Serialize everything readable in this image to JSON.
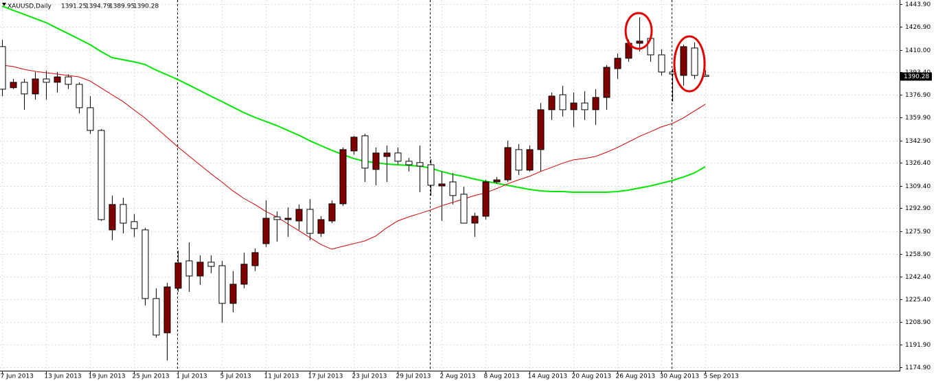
{
  "chart_data": {
    "type": "candlestick",
    "title": "XAUUSD,Daily",
    "categories": [
      "7 Jun 2013",
      null,
      null,
      null,
      "13 Jun 2013",
      null,
      null,
      null,
      "19 Jun 2013",
      null,
      null,
      null,
      "25 Jun 2013",
      null,
      null,
      null,
      "1 Jul 2013",
      null,
      null,
      null,
      "5 Jul 2013",
      null,
      null,
      null,
      "11 Jul 2013",
      null,
      null,
      null,
      "17 Jul 2013",
      null,
      null,
      null,
      "23 Jul 2013",
      null,
      null,
      null,
      "29 Jul 2013",
      null,
      null,
      null,
      "2 Aug 2013",
      null,
      null,
      null,
      "8 Aug 2013",
      null,
      null,
      null,
      "14 Aug 2013",
      null,
      null,
      null,
      "20 Aug 2013",
      null,
      null,
      null,
      "26 Aug 2013",
      null,
      null,
      null,
      "30 Aug 2013",
      null,
      null,
      null,
      "5 Sep 2013"
    ],
    "open": [
      1412.4,
      1382,
      1386,
      1377.4,
      1388.5,
      1386,
      1390,
      1384.5,
      1367.2,
      1350.4,
      1276.8,
      1295.6,
      1282.9,
      1276.8,
      1226,
      1200.6,
      1233.6,
      1253.9,
      1242.7,
      1252.9,
      1250.3,
      1222.4,
      1236.6,
      1250.3,
      1266.6,
      1286.4,
      1284.4,
      1283.4,
      1292,
      1274.2,
      1283.4,
      1296.1,
      1335.2,
      1346.4,
      1321.5,
      1331.1,
      1333.7,
      1327.6,
      1326.6,
      1325,
      1309.3,
      1312.3,
      1303.2,
      1281.8,
      1286.9,
      1312.3,
      1313.8,
      1336.2,
      1321,
      1336.2,
      1365.7,
      1376.8,
      1365.7,
      1370.7,
      1365.7,
      1374.8,
      1396.1,
      1403.8,
      1414.9,
      1418.5,
      1406.3,
      1393.6,
      1391.1,
      1411.4,
      1391.25
    ],
    "high": [
      1417.5,
      1388.5,
      1388.5,
      1393.6,
      1394.6,
      1393.6,
      1392,
      1386,
      1375.8,
      1351.4,
      1302.2,
      1300.6,
      1288.5,
      1278.3,
      1233.6,
      1237.6,
      1261.5,
      1267.6,
      1258,
      1258,
      1253.9,
      1246.3,
      1260,
      1263,
      1298.6,
      1290.5,
      1293.5,
      1295.6,
      1299.6,
      1286.9,
      1298.6,
      1337.7,
      1346.4,
      1347.9,
      1337.7,
      1339.2,
      1337.7,
      1330.1,
      1339.2,
      1329.1,
      1320,
      1318.9,
      1308.8,
      1289.5,
      1313.8,
      1315.9,
      1342.8,
      1340.3,
      1339.2,
      1370.7,
      1378.4,
      1383.4,
      1378.4,
      1379.4,
      1380.9,
      1398.7,
      1407.3,
      1417.5,
      1434.2,
      1420.5,
      1410.4,
      1396.1,
      1413.9,
      1415.5,
      1394.79
    ],
    "low": [
      1375.8,
      1381,
      1365.7,
      1373.3,
      1373.3,
      1378.4,
      1381,
      1363,
      1347.9,
      1283.4,
      1269.2,
      1274.2,
      1271.7,
      1220.9,
      1197,
      1180.2,
      1231,
      1231,
      1236.1,
      1244.8,
      1208.2,
      1215.8,
      1233.6,
      1246.3,
      1264.1,
      1268.1,
      1271.7,
      1276.8,
      1269.2,
      1271.7,
      1281.8,
      1294.6,
      1332.6,
      1312.3,
      1309.8,
      1312.3,
      1325,
      1320,
      1304.7,
      1302.2,
      1283.4,
      1295.6,
      1281.8,
      1271.7,
      1284.4,
      1310.8,
      1312.3,
      1317.4,
      1320,
      1320,
      1358.1,
      1360.6,
      1353,
      1358.1,
      1354.5,
      1365.7,
      1388.5,
      1401.2,
      1408.8,
      1401.2,
      1391.1,
      1371.8,
      1383.5,
      1388.5,
      1389.95
    ],
    "close": [
      1380.9,
      1386,
      1377.4,
      1388.5,
      1386,
      1390,
      1384.5,
      1367.2,
      1350.4,
      1284.4,
      1295.6,
      1281.8,
      1277.8,
      1226,
      1199,
      1234.6,
      1252.4,
      1242.7,
      1252.9,
      1249.8,
      1222.4,
      1236.6,
      1251.4,
      1260,
      1285.4,
      1284.4,
      1285.4,
      1292,
      1274.2,
      1284.4,
      1296.1,
      1336.2,
      1345.4,
      1322.5,
      1333.7,
      1333.7,
      1327.6,
      1325,
      1324,
      1309.8,
      1310.8,
      1302.2,
      1281.8,
      1286.9,
      1312.3,
      1313.8,
      1337.7,
      1321,
      1336.2,
      1365.7,
      1375.8,
      1365.7,
      1370.7,
      1365.7,
      1374.8,
      1397.1,
      1403.8,
      1414.9,
      1416.5,
      1406.3,
      1393.6,
      1392.1,
      1412.4,
      1391.1,
      1390.28
    ],
    "up_color": "#800000",
    "down_color": "#ffffff",
    "series": [
      {
        "color": "#00e600",
        "values": [
          1442.4,
          1439.3,
          1436.3,
          1433.2,
          1430.2,
          1426.1,
          1422.1,
          1418,
          1413.9,
          1408.8,
          1404.3,
          1402.7,
          1401.2,
          1399.2,
          1395.1,
          1391.6,
          1388,
          1384,
          1379.9,
          1375.8,
          1371.8,
          1367.7,
          1363.6,
          1360.1,
          1357,
          1354,
          1350.4,
          1346.9,
          1342.8,
          1339.2,
          1335.7,
          1332.6,
          1329.6,
          1327.6,
          1326.6,
          1325.5,
          1325,
          1324.5,
          1324,
          1322.5,
          1320,
          1317.9,
          1316.4,
          1314.4,
          1312.8,
          1311.3,
          1309.8,
          1308.3,
          1306.7,
          1305.7,
          1305.2,
          1305.2,
          1304.7,
          1304.7,
          1304.7,
          1304.7,
          1305.2,
          1306.2,
          1307.8,
          1309.3,
          1311.3,
          1313.3,
          1315.9,
          1318.9,
          1323.5
        ]
      },
      {
        "color": "#d00000",
        "values": [
          1398.7,
          1397.7,
          1395.6,
          1394.1,
          1393.1,
          1392.1,
          1391.1,
          1390,
          1387,
          1381.9,
          1376.8,
          1371.8,
          1365.7,
          1359.6,
          1352.5,
          1345.4,
          1338.2,
          1331.6,
          1325,
          1318.4,
          1312.3,
          1305.7,
          1300.1,
          1295.6,
          1290.5,
          1286.4,
          1281.3,
          1276.3,
          1271.2,
          1266.1,
          1262.5,
          1264.6,
          1266.6,
          1268.6,
          1272.2,
          1278.3,
          1283.4,
          1286.4,
          1288.9,
          1291.5,
          1294.6,
          1297.1,
          1299.6,
          1302.2,
          1304.2,
          1307.3,
          1310.8,
          1313.8,
          1316.4,
          1320,
          1323,
          1326.1,
          1328.6,
          1329.6,
          1331.1,
          1334.2,
          1337.7,
          1341.8,
          1345.9,
          1349.4,
          1353,
          1355.5,
          1359.6,
          1364.7,
          1369.7
        ]
      }
    ],
    "ylim": [
      1172.6,
      1446.9
    ],
    "yticks": [
      {
        "value": 1443.9,
        "label": "1443.90"
      },
      {
        "value": 1426.9,
        "label": "1426.90"
      },
      {
        "value": 1410.0,
        "label": "1410.00"
      },
      {
        "value": 1393.4,
        "label": "1393.40"
      },
      {
        "value": 1376.9,
        "label": "1376.90"
      },
      {
        "value": 1359.9,
        "label": "1359.90"
      },
      {
        "value": 1342.9,
        "label": "1342.90"
      },
      {
        "value": 1326.4,
        "label": "1326.40"
      },
      {
        "value": 1309.4,
        "label": "1309.40"
      },
      {
        "value": 1292.9,
        "label": "1292.90"
      },
      {
        "value": 1275.9,
        "label": "1275.90"
      },
      {
        "value": 1258.9,
        "label": "1258.90"
      },
      {
        "value": 1242.4,
        "label": "1242.40"
      },
      {
        "value": 1225.4,
        "label": "1225.40"
      },
      {
        "value": 1208.9,
        "label": "1208.90"
      },
      {
        "value": 1191.9,
        "label": "1191.90"
      },
      {
        "value": 1174.9,
        "label": "1174.90"
      }
    ],
    "grid": true
  }
}
